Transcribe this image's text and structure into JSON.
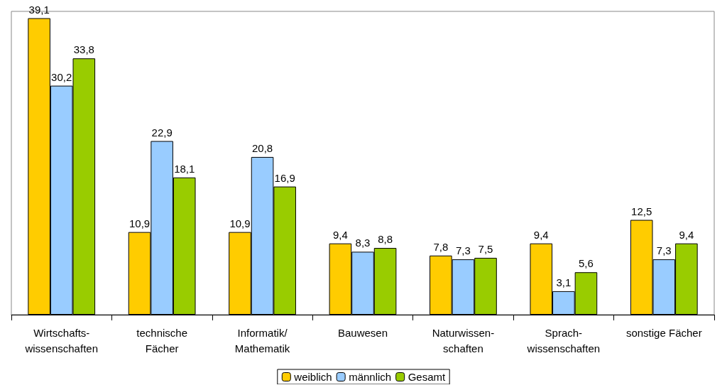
{
  "chart_data": {
    "type": "bar",
    "categories": [
      "Wirtschafts-\nwissenschaften",
      "technische\nFächer",
      "Informatik/\nMathematik",
      "Bauwesen",
      "Naturwissen-\nschaften",
      "Sprach-\nwissenschaften",
      "sonstige Fächer"
    ],
    "series": [
      {
        "name": "weiblich",
        "color": "#ffcc00",
        "values": [
          39.1,
          10.9,
          10.9,
          9.4,
          7.8,
          9.4,
          12.5
        ],
        "value_labels": [
          "39,1",
          "10,9",
          "10,9",
          "9,4",
          "7,8",
          "9,4",
          "12,5"
        ]
      },
      {
        "name": "männlich",
        "color": "#99ccff",
        "values": [
          30.2,
          22.9,
          20.8,
          8.3,
          7.3,
          3.1,
          7.3
        ],
        "value_labels": [
          "30,2",
          "22,9",
          "20,8",
          "8,3",
          "7,3",
          "3,1",
          "7,3"
        ]
      },
      {
        "name": "Gesamt",
        "color": "#99cc00",
        "values": [
          33.8,
          18.1,
          16.9,
          8.8,
          7.5,
          5.6,
          9.4
        ],
        "value_labels": [
          "33,8",
          "18,1",
          "16,9",
          "8,8",
          "7,5",
          "5,6",
          "9,4"
        ]
      }
    ],
    "legend": "bottom"
  }
}
